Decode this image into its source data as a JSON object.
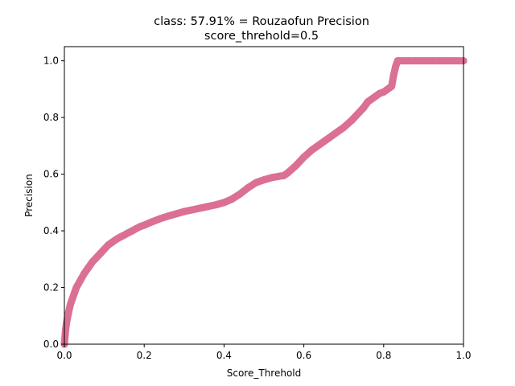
{
  "chart_data": {
    "type": "scatter",
    "title": "class: 57.91% = Rouzaofun Precision",
    "subtitle": "score_threhold=0.5",
    "xlabel": "Score_Threhold",
    "ylabel": "Precision",
    "xlim": [
      0,
      1
    ],
    "ylim": [
      0,
      1.05
    ],
    "xticks": [
      "0.0",
      "0.2",
      "0.4",
      "0.6",
      "0.8",
      "1.0"
    ],
    "yticks": [
      "0.0",
      "0.2",
      "0.4",
      "0.6",
      "0.8",
      "1.0"
    ],
    "grid": false,
    "legend": "none",
    "marker_color": "#db7093",
    "series": [
      {
        "x": [
          0.0,
          0.003,
          0.006,
          0.01,
          0.015,
          0.02,
          0.025,
          0.03,
          0.04,
          0.05,
          0.06,
          0.07,
          0.08,
          0.09,
          0.1,
          0.11,
          0.12,
          0.13,
          0.14,
          0.15,
          0.16,
          0.17,
          0.18,
          0.19,
          0.2,
          0.22,
          0.24,
          0.26,
          0.28,
          0.3,
          0.32,
          0.34,
          0.36,
          0.38,
          0.4,
          0.42,
          0.44,
          0.46,
          0.48,
          0.5,
          0.52,
          0.54,
          0.55,
          0.56,
          0.58,
          0.6,
          0.62,
          0.64,
          0.66,
          0.68,
          0.7,
          0.72,
          0.73,
          0.74,
          0.75,
          0.76,
          0.78,
          0.79,
          0.8,
          0.81,
          0.815,
          0.82,
          0.825,
          0.83,
          0.835,
          0.84,
          0.86,
          0.88,
          0.9,
          0.92,
          0.94,
          0.96,
          0.98,
          1.0
        ],
        "y": [
          0.0,
          0.05,
          0.08,
          0.11,
          0.14,
          0.16,
          0.18,
          0.2,
          0.225,
          0.25,
          0.27,
          0.29,
          0.305,
          0.32,
          0.335,
          0.35,
          0.36,
          0.37,
          0.378,
          0.385,
          0.393,
          0.4,
          0.408,
          0.415,
          0.42,
          0.432,
          0.443,
          0.452,
          0.46,
          0.468,
          0.474,
          0.48,
          0.486,
          0.492,
          0.5,
          0.512,
          0.53,
          0.552,
          0.57,
          0.58,
          0.588,
          0.593,
          0.595,
          0.605,
          0.63,
          0.66,
          0.685,
          0.705,
          0.725,
          0.745,
          0.765,
          0.79,
          0.805,
          0.82,
          0.835,
          0.855,
          0.875,
          0.885,
          0.89,
          0.9,
          0.905,
          0.91,
          0.95,
          0.98,
          1.0,
          1.0,
          1.0,
          1.0,
          1.0,
          1.0,
          1.0,
          1.0,
          1.0,
          1.0
        ]
      }
    ]
  }
}
